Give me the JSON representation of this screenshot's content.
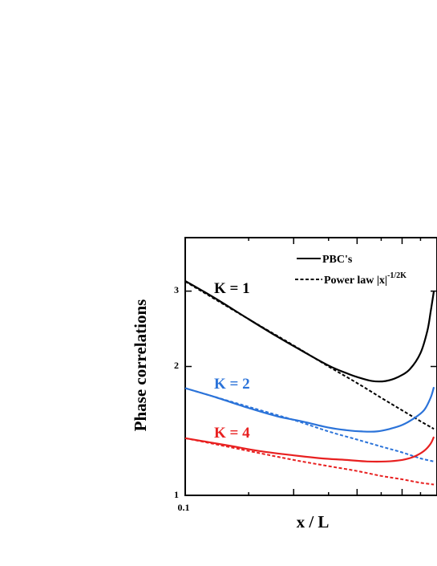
{
  "chart_data": {
    "type": "line",
    "title": "",
    "xlabel": "x / L",
    "ylabel": "Phase correlations",
    "xscale": "log",
    "yscale": "log",
    "xlim": [
      0.1,
      0.5
    ],
    "ylim": [
      1,
      4
    ],
    "x_tick_labels": [
      "0.1"
    ],
    "y_ticks": [
      {
        "value": 1,
        "label": "1"
      },
      {
        "value": 2,
        "label": "2"
      },
      {
        "value": 3,
        "label": "3"
      }
    ],
    "grid": false,
    "legend": {
      "placement": "top-right",
      "entries": [
        {
          "style": "solid",
          "label": "PBC's"
        },
        {
          "style": "dashed",
          "label": "Power law |x|",
          "superscript": "-1/2K"
        }
      ]
    },
    "series": [
      {
        "label": "K = 1",
        "color": "#000000",
        "style": "solid",
        "x": [
          0.1,
          0.12,
          0.15,
          0.18,
          0.21,
          0.25,
          0.28,
          0.3,
          0.33,
          0.36,
          0.39,
          0.42,
          0.45,
          0.47,
          0.48,
          0.49
        ],
        "y": [
          3.17,
          2.9,
          2.58,
          2.35,
          2.18,
          2.01,
          1.93,
          1.89,
          1.85,
          1.85,
          1.89,
          1.97,
          2.15,
          2.42,
          2.68,
          3.0
        ]
      },
      {
        "label": "K = 1",
        "color": "#000000",
        "style": "dashed",
        "x": [
          0.1,
          0.15,
          0.2,
          0.25,
          0.3,
          0.35,
          0.4,
          0.45,
          0.49
        ],
        "y": [
          3.16,
          2.58,
          2.24,
          2.0,
          1.83,
          1.69,
          1.58,
          1.49,
          1.43
        ]
      },
      {
        "label": "K = 2",
        "color": "#2b73d9",
        "style": "solid",
        "x": [
          0.1,
          0.12,
          0.15,
          0.18,
          0.21,
          0.25,
          0.28,
          0.31,
          0.34,
          0.37,
          0.4,
          0.43,
          0.46,
          0.48,
          0.49
        ],
        "y": [
          1.78,
          1.7,
          1.6,
          1.53,
          1.49,
          1.44,
          1.42,
          1.41,
          1.41,
          1.43,
          1.46,
          1.51,
          1.58,
          1.69,
          1.79
        ]
      },
      {
        "label": "K = 2",
        "color": "#2b73d9",
        "style": "dashed",
        "x": [
          0.1,
          0.15,
          0.2,
          0.25,
          0.3,
          0.35,
          0.4,
          0.45,
          0.49
        ],
        "y": [
          1.78,
          1.61,
          1.5,
          1.41,
          1.35,
          1.3,
          1.26,
          1.22,
          1.2
        ]
      },
      {
        "label": "K = 4",
        "color": "#e82020",
        "style": "solid",
        "x": [
          0.1,
          0.13,
          0.16,
          0.2,
          0.24,
          0.28,
          0.32,
          0.36,
          0.4,
          0.43,
          0.46,
          0.48,
          0.49
        ],
        "y": [
          1.36,
          1.31,
          1.27,
          1.24,
          1.22,
          1.21,
          1.2,
          1.2,
          1.21,
          1.23,
          1.27,
          1.32,
          1.37
        ]
      },
      {
        "label": "K = 4",
        "color": "#e82020",
        "style": "dashed",
        "x": [
          0.1,
          0.15,
          0.2,
          0.25,
          0.3,
          0.35,
          0.4,
          0.45,
          0.49
        ],
        "y": [
          1.36,
          1.27,
          1.21,
          1.17,
          1.14,
          1.11,
          1.09,
          1.07,
          1.06
        ]
      }
    ]
  }
}
